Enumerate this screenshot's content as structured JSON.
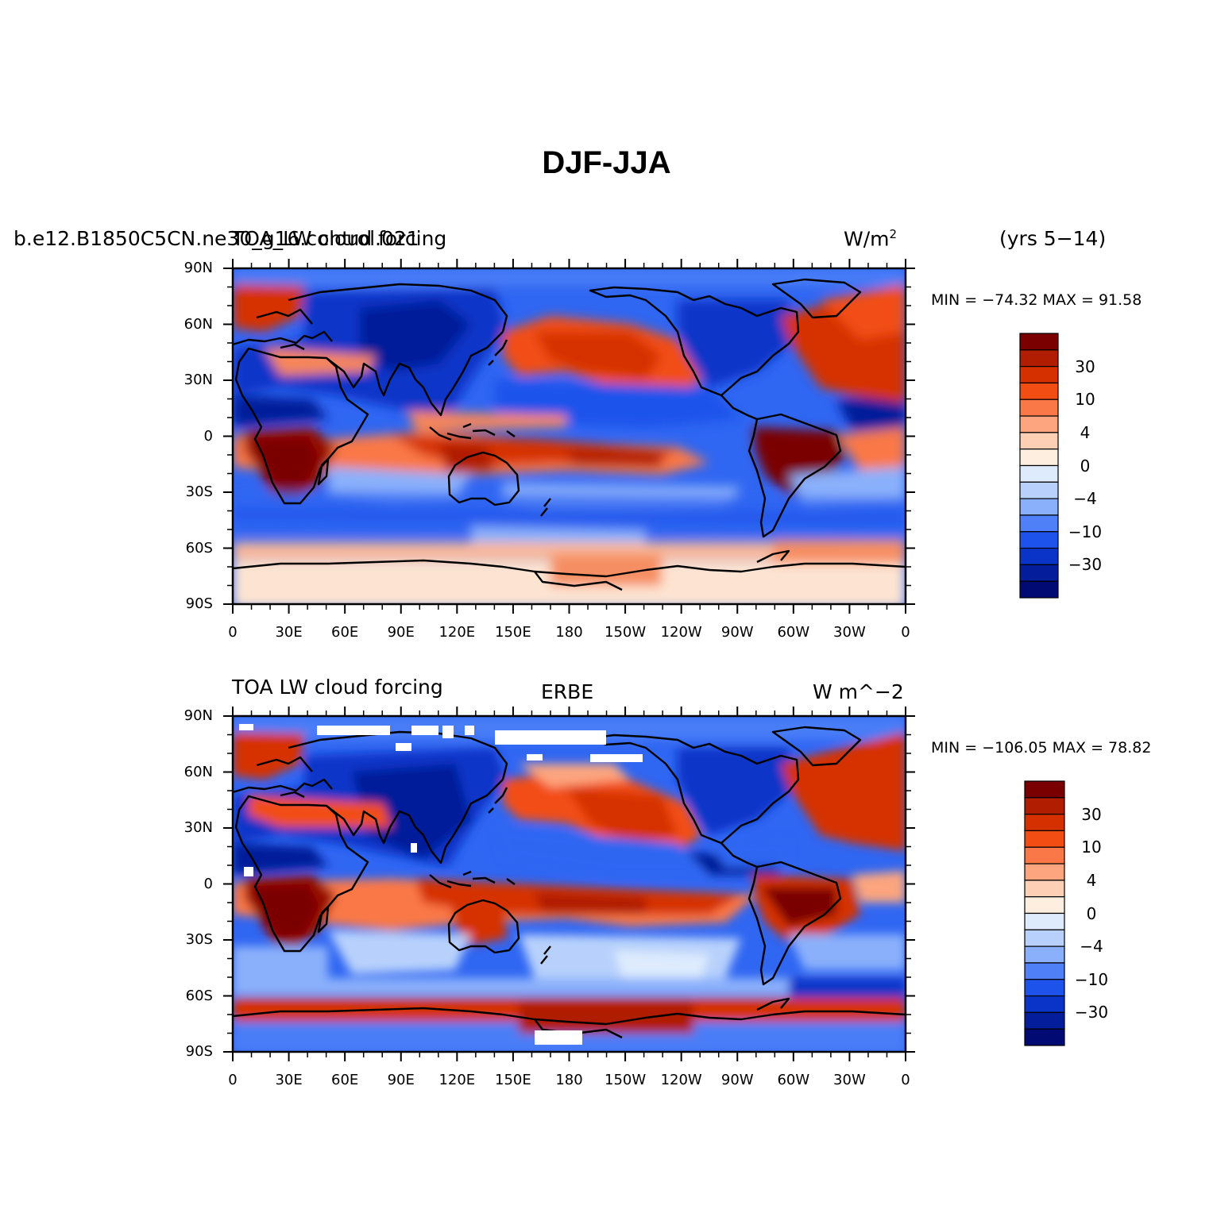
{
  "title": "DJF-JJA",
  "panels": [
    {
      "left_label": "b.e12.B1850C5CN.ne30_g16.control.021",
      "center_label": "TOA_LW cloud forcing",
      "units": "W/m",
      "units_sup": "2",
      "right_label": "(yrs 5−14)",
      "stats": "MIN = −74.32 MAX =  91.58",
      "source": "model"
    },
    {
      "left_label": "TOA LW cloud forcing",
      "center_label": "ERBE",
      "units": "W m^−2",
      "stats": "MIN = −106.05 MAX =  78.82",
      "source": "observations"
    }
  ],
  "axes": {
    "lat_labels": [
      "90N",
      "60N",
      "30N",
      "0",
      "30S",
      "60S",
      "90S"
    ],
    "lon_labels": [
      "0",
      "30E",
      "60E",
      "90E",
      "120E",
      "150E",
      "180",
      "150W",
      "120W",
      "90W",
      "60W",
      "30W",
      "0"
    ]
  },
  "colorbar": {
    "labels": [
      "30",
      "10",
      "4",
      "0",
      "−4",
      "−10",
      "−30"
    ],
    "colors_top_to_bottom": [
      "#7a0000",
      "#b01d00",
      "#d53000",
      "#f24d12",
      "#fa7847",
      "#fca57e",
      "#fdd0b5",
      "#fdeee0",
      "#ddebfd",
      "#b8d1fc",
      "#8ab0fb",
      "#4f80f8",
      "#1d52eb",
      "#0a34c8",
      "#041d9a",
      "#000a72"
    ]
  },
  "chart_data": [
    {
      "type": "heatmap",
      "title": "DJF-JJA",
      "subtitle": "b.e12.B1850C5CN.ne30_g16.control.021 TOA_LW cloud forcing (yrs 5−14)",
      "units": "W/m2",
      "x_axis": "longitude",
      "y_axis": "latitude",
      "xlim": [
        0,
        360
      ],
      "ylim": [
        -90,
        90
      ],
      "min": -74.32,
      "max": 91.58,
      "contour_levels": [
        -30,
        -10,
        -4,
        0,
        4,
        10,
        30
      ]
    },
    {
      "type": "heatmap",
      "title": "DJF-JJA",
      "subtitle": "ERBE TOA LW cloud forcing",
      "units": "W m^-2",
      "x_axis": "longitude",
      "y_axis": "latitude",
      "xlim": [
        0,
        360
      ],
      "ylim": [
        -90,
        90
      ],
      "min": -106.05,
      "max": 78.82,
      "contour_levels": [
        -30,
        -10,
        -4,
        0,
        4,
        10,
        30
      ]
    }
  ]
}
